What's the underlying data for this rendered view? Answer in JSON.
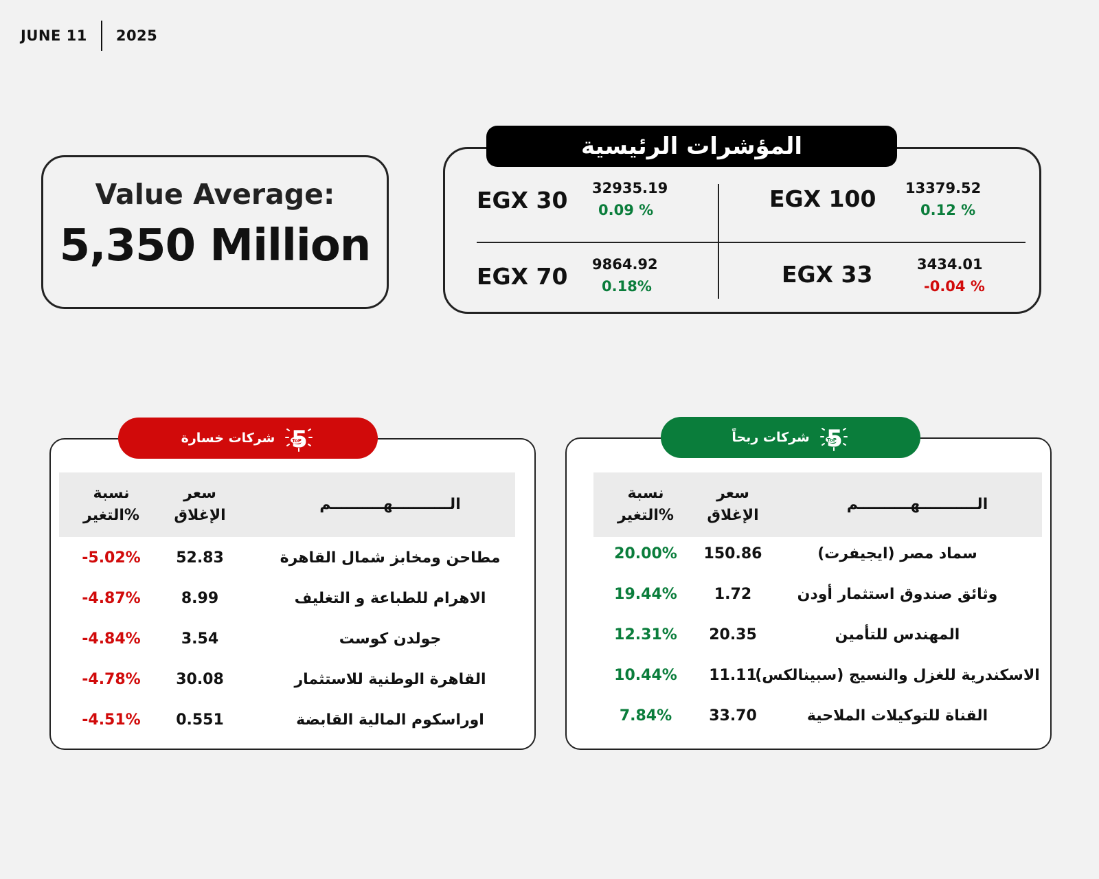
{
  "date": {
    "day": "JUNE  11",
    "year": "2025"
  },
  "value_average": {
    "label": "Value Average:",
    "amount": "5,350 Million"
  },
  "indices": {
    "title": "المؤشرات الرئيسية",
    "items": [
      {
        "name": "EGX 30",
        "value": "32935.19",
        "change": "0.09 %",
        "direction": "up"
      },
      {
        "name": "EGX 100",
        "value": "13379.52",
        "change": "0.12 %",
        "direction": "up"
      },
      {
        "name": "EGX 70",
        "value": "9864.92",
        "change": "0.18%",
        "direction": "up"
      },
      {
        "name": "EGX 33",
        "value": "3434.01",
        "change": "-0.04 %",
        "direction": "down"
      }
    ]
  },
  "colors": {
    "green": "#0a7d3b",
    "red": "#d10a0a",
    "dark": "#111111"
  },
  "losers": {
    "badge": "شركات خسارة",
    "columns": {
      "stock": "الـــــــــــهــــــــــم",
      "close": [
        "سعر",
        "الإغلاق"
      ],
      "change": [
        "نسبة",
        "التغير%"
      ]
    },
    "rows": [
      {
        "name": "مطاحن ومخابز شمال القاهرة",
        "price": "52.83",
        "change": "-5.02%"
      },
      {
        "name": "الاهرام للطباعة و التغليف",
        "price": "8.99",
        "change": "-4.87%"
      },
      {
        "name": "جولدن كوست",
        "price": "3.54",
        "change": "-4.84%"
      },
      {
        "name": "القاهرة الوطنية للاستثمار",
        "price": "30.08",
        "change": "-4.78%"
      },
      {
        "name": "اوراسكوم المالية القابضة",
        "price": "0.551",
        "change": "-4.51%"
      }
    ]
  },
  "gainers": {
    "badge": "شركات ربحاً",
    "columns": {
      "stock": "الـــــــــــهــــــــــم",
      "close": [
        "سعر",
        "الإغلاق"
      ],
      "change": [
        "نسبة",
        "التغير%"
      ]
    },
    "rows": [
      {
        "name": "سماد مصر (ايجيفرت)",
        "price": "150.86",
        "change": "20.00%"
      },
      {
        "name": "وثائق صندوق استثمار أودن",
        "price": "1.72",
        "change": "19.44%"
      },
      {
        "name": "المهندس للتأمين",
        "price": "20.35",
        "change": "12.31%"
      },
      {
        "name": "الاسكندرية للغزل والنسيج (سبينالكس)",
        "price": "11.11",
        "change": "10.44%"
      },
      {
        "name": "القناة للتوكيلات الملاحية",
        "price": "33.70",
        "change": "7.84%"
      }
    ]
  }
}
